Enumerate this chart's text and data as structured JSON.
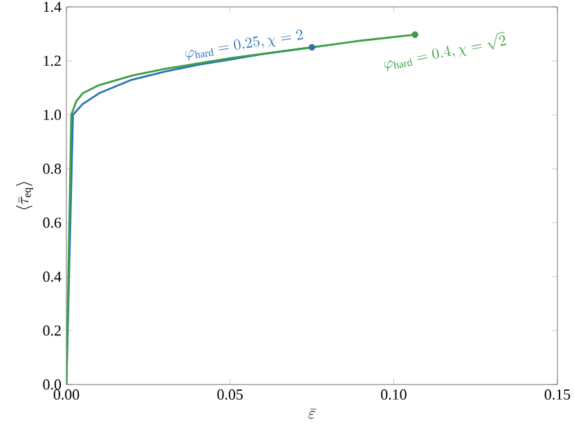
{
  "chart_data": {
    "type": "line",
    "xlabel": "\\bar{\\varepsilon}",
    "ylabel": "\\langle\\bar{\\tau}_{\\mathrm{eq}}\\rangle",
    "xlim": [
      0,
      0.15
    ],
    "ylim": [
      0,
      1.4
    ],
    "xticks": [
      {
        "value": 0,
        "label": "0.00"
      },
      {
        "value": 0.05,
        "label": "0.05"
      },
      {
        "value": 0.1,
        "label": "0.10"
      },
      {
        "value": 0.15,
        "label": "0.15"
      }
    ],
    "yticks": [
      {
        "value": 0,
        "label": "0.0"
      },
      {
        "value": 0.2,
        "label": "0.2"
      },
      {
        "value": 0.4,
        "label": "0.4"
      },
      {
        "value": 0.6,
        "label": "0.6"
      },
      {
        "value": 0.8,
        "label": "0.8"
      },
      {
        "value": 1.0,
        "label": "1.0"
      },
      {
        "value": 1.2,
        "label": "1.2"
      },
      {
        "value": 1.4,
        "label": "1.4"
      }
    ],
    "series": [
      {
        "color": "#2a74b4",
        "x": [
          0,
          0.002,
          0.005,
          0.01,
          0.02,
          0.03,
          0.04,
          0.05,
          0.06,
          0.075
        ],
        "values": [
          0,
          1.0,
          1.04,
          1.08,
          1.13,
          1.16,
          1.185,
          1.205,
          1.225,
          1.25
        ]
      },
      {
        "color": "#3c9e48",
        "x": [
          0,
          0.0015,
          0.003,
          0.005,
          0.01,
          0.02,
          0.03,
          0.04,
          0.05,
          0.075,
          0.09,
          0.1065
        ],
        "values": [
          0,
          1.0,
          1.05,
          1.08,
          1.11,
          1.145,
          1.17,
          1.19,
          1.21,
          1.25,
          1.275,
          1.297
        ]
      },
      {
        "type": "scatter",
        "marker": "circle",
        "color": "#2a74b4",
        "x": [
          0.075
        ],
        "values": [
          1.25
        ]
      },
      {
        "type": "scatter",
        "marker": "circle",
        "color": "#3c9e48",
        "x": [
          0.1065
        ],
        "values": [
          1.297
        ]
      }
    ],
    "annotations": [
      "\\varphi_{\\mathrm{hard}} = 0.25, \\chi = 2",
      "\\varphi_{\\mathrm{hard}} = 0.4, \\chi = \\sqrt{2}"
    ]
  }
}
